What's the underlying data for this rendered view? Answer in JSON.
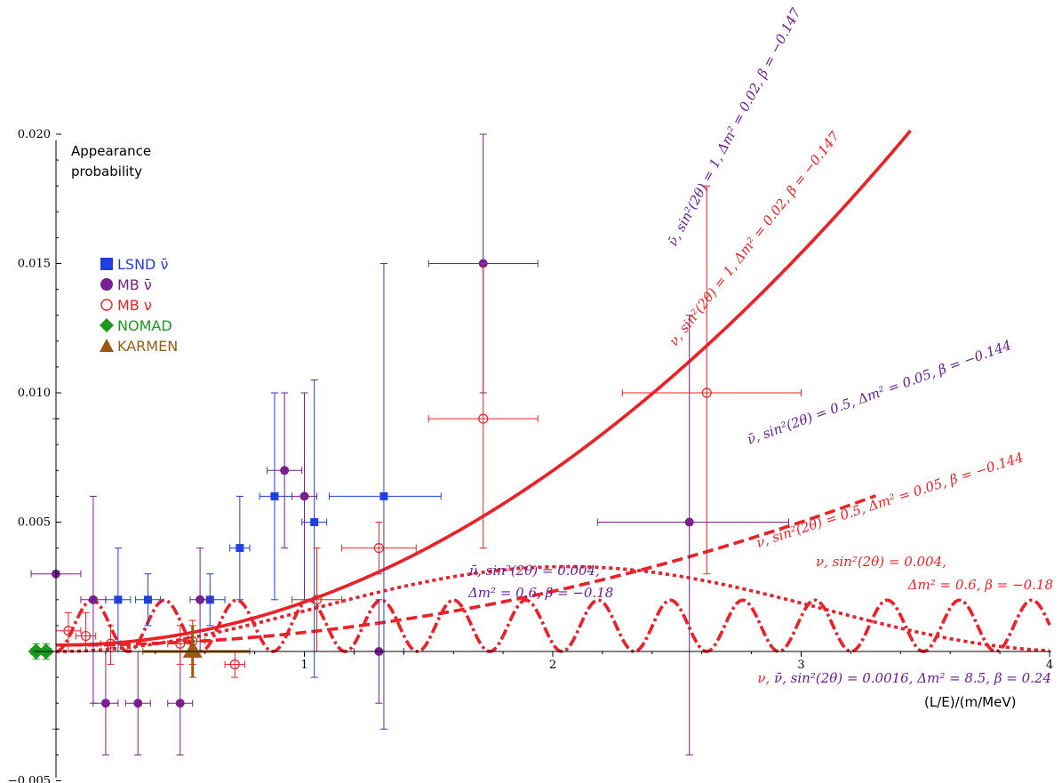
{
  "chart_data": {
    "type": "scatter",
    "title": "",
    "ylabel": "Appearance probability",
    "xlabel": "(L/E)/(m/MeV)",
    "xlim": [
      -0.1,
      4.0
    ],
    "ylim": [
      -0.005,
      0.02
    ],
    "x_ticks": [
      1,
      2,
      3,
      4
    ],
    "y_ticks": [
      {
        "value": -0.005,
        "label": "−0.005"
      },
      {
        "value": 0.005,
        "label": "0.005"
      },
      {
        "value": 0.01,
        "label": "0.010"
      },
      {
        "value": 0.015,
        "label": "0.015"
      },
      {
        "value": 0.02,
        "label": "0.020"
      }
    ],
    "legend": {
      "position": "left",
      "entries": [
        {
          "key": "lsnd",
          "label": "LSND",
          "sym": "ν̄",
          "color": "#1f3fe0",
          "marker": "square"
        },
        {
          "key": "mb_nubar",
          "label": "MB",
          "sym": "ν̄",
          "color": "#7a1f8f",
          "marker": "circle"
        },
        {
          "key": "mb_nu",
          "label": "MB",
          "sym": "ν",
          "color": "#ee2222",
          "marker": "open-circle"
        },
        {
          "key": "nomad",
          "label": "NOMAD",
          "sym": "",
          "color": "#1a9a1a",
          "marker": "diamond"
        },
        {
          "key": "karmen",
          "label": "KARMEN",
          "sym": "",
          "color": "#9a5a12",
          "marker": "triangle"
        }
      ]
    },
    "series": [
      {
        "name": "LSND ν̄",
        "color": "#1f3fe0",
        "marker": "square",
        "points": [
          {
            "x": 0.25,
            "y": 0.002,
            "xlo": 0.2,
            "xhi": 0.3,
            "ylo": 0.0,
            "yhi": 0.004
          },
          {
            "x": 0.37,
            "y": 0.002,
            "xlo": 0.32,
            "xhi": 0.42,
            "ylo": 0.001,
            "yhi": 0.003
          },
          {
            "x": 0.62,
            "y": 0.002,
            "xlo": 0.58,
            "xhi": 0.68,
            "ylo": 0.001,
            "yhi": 0.003
          },
          {
            "x": 0.74,
            "y": 0.004,
            "xlo": 0.7,
            "xhi": 0.78,
            "ylo": 0.002,
            "yhi": 0.006
          },
          {
            "x": 0.88,
            "y": 0.006,
            "xlo": 0.82,
            "xhi": 0.95,
            "ylo": 0.002,
            "yhi": 0.01
          },
          {
            "x": 1.04,
            "y": 0.005,
            "xlo": 0.99,
            "xhi": 1.09,
            "ylo": -0.001,
            "yhi": 0.0105
          },
          {
            "x": 1.32,
            "y": 0.006,
            "xlo": 1.1,
            "xhi": 1.55,
            "ylo": -0.003,
            "yhi": 0.015
          }
        ]
      },
      {
        "name": "MB ν̄",
        "color": "#7a1f8f",
        "marker": "circle",
        "points": [
          {
            "x": 0.0,
            "y": 0.003,
            "xlo": -0.1,
            "xhi": 0.1,
            "ylo": -0.003,
            "yhi": 0.009
          },
          {
            "x": 0.15,
            "y": 0.002,
            "xlo": 0.1,
            "xhi": 0.2,
            "ylo": -0.002,
            "yhi": 0.006
          },
          {
            "x": 0.2,
            "y": -0.002,
            "xlo": 0.15,
            "xhi": 0.25,
            "ylo": -0.004,
            "yhi": 0.0
          },
          {
            "x": 0.33,
            "y": -0.002,
            "xlo": 0.28,
            "xhi": 0.38,
            "ylo": -0.004,
            "yhi": 0.0
          },
          {
            "x": 0.5,
            "y": -0.002,
            "xlo": 0.45,
            "xhi": 0.55,
            "ylo": -0.004,
            "yhi": 0.0
          },
          {
            "x": 0.58,
            "y": 0.002,
            "xlo": 0.54,
            "xhi": 0.62,
            "ylo": 0.0,
            "yhi": 0.004
          },
          {
            "x": 0.92,
            "y": 0.007,
            "xlo": 0.85,
            "xhi": 0.99,
            "ylo": 0.004,
            "yhi": 0.01
          },
          {
            "x": 1.0,
            "y": 0.006,
            "xlo": 0.95,
            "xhi": 1.05,
            "ylo": 0.002,
            "yhi": 0.01
          },
          {
            "x": 1.3,
            "y": 0.0,
            "xlo": 1.2,
            "xhi": 1.4,
            "ylo": -0.002,
            "yhi": 0.002
          },
          {
            "x": 1.72,
            "y": 0.015,
            "xlo": 1.5,
            "xhi": 1.94,
            "ylo": 0.01,
            "yhi": 0.02
          },
          {
            "x": 2.55,
            "y": 0.005,
            "xlo": 2.18,
            "xhi": 2.95,
            "ylo": -0.004,
            "yhi": 0.013
          }
        ]
      },
      {
        "name": "MB ν",
        "color": "#ee2222",
        "marker": "open-circle",
        "points": [
          {
            "x": 0.05,
            "y": 0.0008,
            "xlo": 0.0,
            "xhi": 0.1,
            "ylo": 0.0,
            "yhi": 0.0015
          },
          {
            "x": 0.12,
            "y": 0.0006,
            "xlo": 0.08,
            "xhi": 0.16,
            "ylo": 0.0,
            "yhi": 0.0015
          },
          {
            "x": 0.22,
            "y": 0.0003,
            "xlo": 0.18,
            "xhi": 0.26,
            "ylo": -0.0005,
            "yhi": 0.001
          },
          {
            "x": 0.5,
            "y": 0.0003,
            "xlo": 0.45,
            "xhi": 0.55,
            "ylo": -0.0005,
            "yhi": 0.001
          },
          {
            "x": 0.55,
            "y": 0.0004,
            "xlo": 0.5,
            "xhi": 0.6,
            "ylo": -0.0005,
            "yhi": 0.0012
          },
          {
            "x": 0.72,
            "y": -0.0005,
            "xlo": 0.68,
            "xhi": 0.76,
            "ylo": -0.001,
            "yhi": 0.0
          },
          {
            "x": 1.05,
            "y": 0.002,
            "xlo": 0.95,
            "xhi": 1.15,
            "ylo": 0.0,
            "yhi": 0.004
          },
          {
            "x": 1.3,
            "y": 0.004,
            "xlo": 1.15,
            "xhi": 1.45,
            "ylo": 0.003,
            "yhi": 0.005
          },
          {
            "x": 1.72,
            "y": 0.009,
            "xlo": 1.5,
            "xhi": 1.94,
            "ylo": 0.004,
            "yhi": 0.015
          },
          {
            "x": 2.62,
            "y": 0.01,
            "xlo": 2.28,
            "xhi": 3.0,
            "ylo": 0.003,
            "yhi": 0.018
          }
        ]
      },
      {
        "name": "NOMAD",
        "color": "#1a9a1a",
        "marker": "diamond",
        "points": [
          {
            "x": -0.08,
            "y": 0.0,
            "xlo": -0.1,
            "xhi": -0.06,
            "ylo": -0.0003,
            "yhi": 0.0003
          },
          {
            "x": -0.04,
            "y": 0.0,
            "xlo": -0.06,
            "xhi": -0.02,
            "ylo": -0.0003,
            "yhi": 0.0003
          }
        ]
      },
      {
        "name": "KARMEN",
        "color": "#9a5a12",
        "marker": "triangle",
        "points": [
          {
            "x": 0.55,
            "y": 0.0,
            "xlo": 0.35,
            "xhi": 0.78,
            "ylo": -0.001,
            "yhi": 0.001
          }
        ]
      }
    ],
    "curves": [
      {
        "name": "nubar_dashed",
        "color": "#6a1b9a",
        "style": "dashed",
        "width": 3.5,
        "amp": 1.0,
        "dm2": 0.02,
        "beta": -0.147,
        "xmax": 3.0
      },
      {
        "name": "nu_dashed",
        "color": "#ee2222",
        "style": "dashed",
        "width": 3.5,
        "amp": 1.0,
        "dm2": 0.02,
        "beta": -0.147,
        "xmax": 3.3
      },
      {
        "name": "nubar_solid",
        "color": "#6a1b9a",
        "style": "solid",
        "width": 3.5,
        "amp": 0.5,
        "dm2": 0.05,
        "beta": -0.144,
        "xmax": 4.0
      },
      {
        "name": "nu_solid",
        "color": "#ee2222",
        "style": "solid",
        "width": 3.5,
        "amp": 0.5,
        "dm2": 0.05,
        "beta": -0.144,
        "xmax": 4.0
      },
      {
        "name": "nubar_dotted",
        "color": "#6a1b9a",
        "style": "dotted",
        "width": 3.5,
        "amp": 0.004,
        "dm2": 0.6,
        "beta": -0.18,
        "xmax": 4.0
      },
      {
        "name": "nu_dotted",
        "color": "#ee2222",
        "style": "dotted",
        "width": 3.5,
        "amp": 0.004,
        "dm2": 0.6,
        "beta": -0.18,
        "xmax": 4.0
      },
      {
        "name": "nubar_dotdash",
        "color": "#6a1b9a",
        "style": "dotdash",
        "width": 3.5,
        "amp": 0.0016,
        "dm2": 8.5,
        "beta": 0.24,
        "xmax": 4.0
      },
      {
        "name": "nu_dotdash",
        "color": "#ee2222",
        "style": "dotdash",
        "width": 3.5,
        "amp": 0.0016,
        "dm2": 8.5,
        "beta": 0.24,
        "xmax": 4.0
      }
    ],
    "annotations": [
      {
        "key": "a1",
        "text": "ν̄, sin²(2θ) = 1, Δm² = 0.02, β = −0.147",
        "color": "#6a1b9a"
      },
      {
        "key": "a2",
        "text": "ν, sin²(2θ) = 1, Δm² = 0.02, β = −0.147",
        "color": "#ee2222"
      },
      {
        "key": "a3",
        "text": "ν̄, sin²(2θ) = 0.5, Δm² = 0.05, β = −0.144",
        "color": "#6a1b9a"
      },
      {
        "key": "a4",
        "text": "ν, sin²(2θ) = 0.5, Δm² = 0.05, β = −0.144",
        "color": "#ee2222"
      },
      {
        "key": "a5a",
        "text": "ν̄, sin²(2θ) = 0.004,",
        "color": "#6a1b9a"
      },
      {
        "key": "a5b",
        "text": "Δm² = 0.6, β = −0.18",
        "color": "#6a1b9a"
      },
      {
        "key": "a6a",
        "text": "ν, sin²(2θ) = 0.004,",
        "color": "#ee2222"
      },
      {
        "key": "a6b",
        "text": "Δm² = 0.6, β = −0.18",
        "color": "#ee2222"
      },
      {
        "key": "a7a",
        "text": "ν, ",
        "color": "#ee2222"
      },
      {
        "key": "a7b",
        "text": "ν̄, sin²(2θ) = 0.0016, Δm² = 8.5, β = 0.24",
        "color": "#6a1b9a"
      }
    ]
  }
}
